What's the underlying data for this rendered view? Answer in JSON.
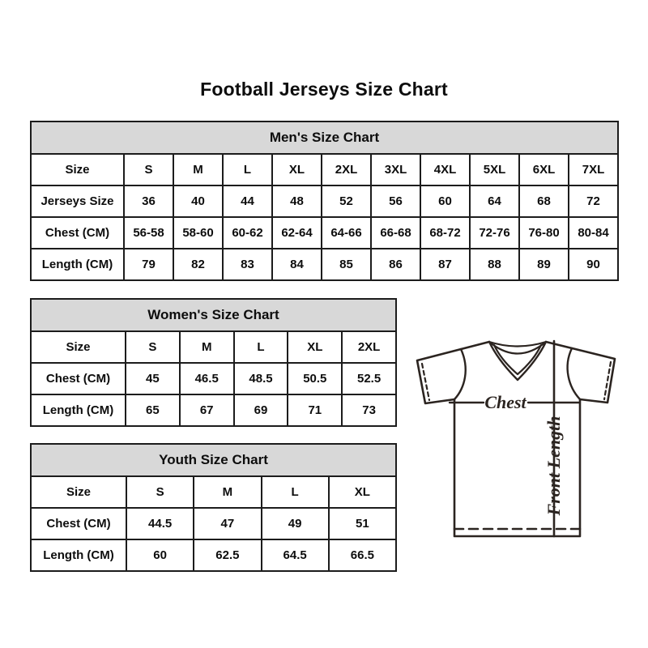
{
  "title": "Football Jerseys Size Chart",
  "chart_data": [
    {
      "type": "table",
      "title": "Men's Size Chart",
      "rows": [
        [
          "Size",
          "S",
          "M",
          "L",
          "XL",
          "2XL",
          "3XL",
          "4XL",
          "5XL",
          "6XL",
          "7XL"
        ],
        [
          "Jerseys Size",
          "36",
          "40",
          "44",
          "48",
          "52",
          "56",
          "60",
          "64",
          "68",
          "72"
        ],
        [
          "Chest (CM)",
          "56-58",
          "58-60",
          "60-62",
          "62-64",
          "64-66",
          "66-68",
          "68-72",
          "72-76",
          "76-80",
          "80-84"
        ],
        [
          "Length (CM)",
          "79",
          "82",
          "83",
          "84",
          "85",
          "86",
          "87",
          "88",
          "89",
          "90"
        ]
      ]
    },
    {
      "type": "table",
      "title": "Women's Size Chart",
      "rows": [
        [
          "Size",
          "S",
          "M",
          "L",
          "XL",
          "2XL"
        ],
        [
          "Chest (CM)",
          "45",
          "46.5",
          "48.5",
          "50.5",
          "52.5"
        ],
        [
          "Length (CM)",
          "65",
          "67",
          "69",
          "71",
          "73"
        ]
      ]
    },
    {
      "type": "table",
      "title": "Youth Size Chart",
      "rows": [
        [
          "Size",
          "S",
          "M",
          "L",
          "XL"
        ],
        [
          "Chest (CM)",
          "44.5",
          "47",
          "49",
          "51"
        ],
        [
          "Length (CM)",
          "60",
          "62.5",
          "64.5",
          "66.5"
        ]
      ]
    }
  ],
  "diagram": {
    "chest_label": "Chest",
    "front_length_label": "Front Length"
  },
  "colors": {
    "table_header_bg": "#d8d8d8",
    "table_border": "#1c1c1c",
    "diagram_stroke": "#2b2420"
  }
}
